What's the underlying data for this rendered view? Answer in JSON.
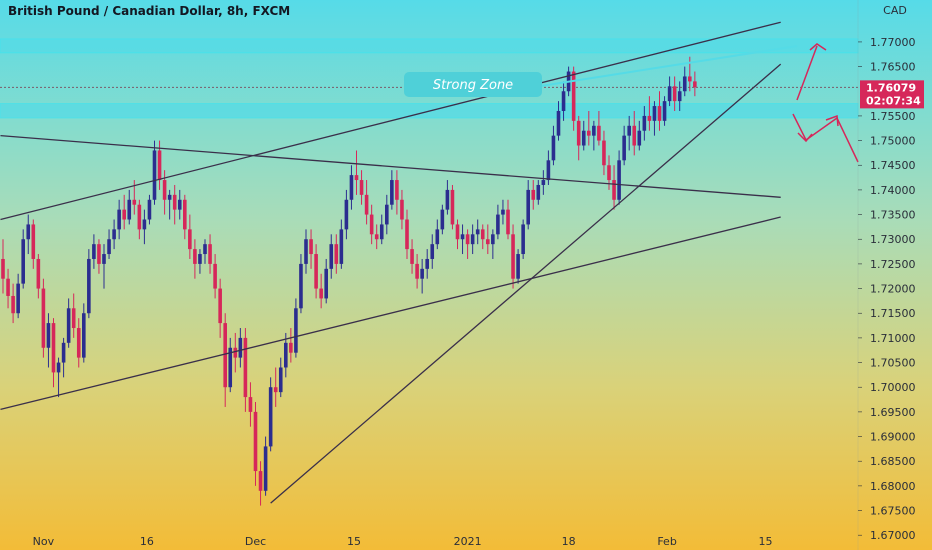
{
  "title": "British Pound / Canadian Dollar, 8h, FXCM",
  "colors": {
    "up": "#2b2d8f",
    "down": "#d6275a",
    "zone": "#55dbe6",
    "line": "#3a2f4a",
    "arrow": "#d6275a",
    "price_bg": "#d6275a"
  },
  "chart_data": {
    "type": "candlestick",
    "title": "British Pound / Canadian Dollar, 8h, FXCM",
    "currency": "CAD",
    "ylim": [
      1.667,
      1.7785
    ],
    "y_ticks": [
      "1.77000",
      "1.76500",
      "1.76079",
      "1.75500",
      "1.75000",
      "1.74500",
      "1.74000",
      "1.73500",
      "1.73000",
      "1.72500",
      "1.72000",
      "1.71500",
      "1.71000",
      "1.70500",
      "1.70000",
      "1.69500",
      "1.69000",
      "1.68500",
      "1.68000",
      "1.67500",
      "1.67000"
    ],
    "x_ticks": [
      "Nov",
      "16",
      "Dec",
      "15",
      "2021",
      "18",
      "Feb",
      "15"
    ],
    "last_price": "1.76079",
    "countdown": "02:07:34",
    "annotation": "Strong Zone",
    "zones": [
      [
        1.7678,
        1.7706
      ],
      [
        1.7546,
        1.7575
      ]
    ],
    "series": [
      {
        "ohlc": [
          [
            1.726,
            1.73,
            1.719,
            1.722
          ],
          [
            1.722,
            1.724,
            1.716,
            1.7185
          ],
          [
            1.7185,
            1.721,
            1.713,
            1.715
          ],
          [
            1.715,
            1.723,
            1.714,
            1.721
          ],
          [
            1.721,
            1.732,
            1.72,
            1.73
          ],
          [
            1.73,
            1.735,
            1.727,
            1.733
          ],
          [
            1.733,
            1.734,
            1.724,
            1.726
          ],
          [
            1.726,
            1.727,
            1.718,
            1.72
          ],
          [
            1.72,
            1.722,
            1.706,
            1.708
          ],
          [
            1.708,
            1.715,
            1.704,
            1.713
          ],
          [
            1.713,
            1.714,
            1.7,
            1.703
          ],
          [
            1.703,
            1.706,
            1.698,
            1.705
          ],
          [
            1.705,
            1.71,
            1.702,
            1.709
          ],
          [
            1.709,
            1.718,
            1.708,
            1.716
          ],
          [
            1.716,
            1.719,
            1.71,
            1.712
          ],
          [
            1.712,
            1.714,
            1.704,
            1.706
          ],
          [
            1.706,
            1.717,
            1.705,
            1.715
          ],
          [
            1.715,
            1.728,
            1.714,
            1.726
          ],
          [
            1.726,
            1.731,
            1.724,
            1.729
          ],
          [
            1.729,
            1.73,
            1.723,
            1.725
          ],
          [
            1.725,
            1.729,
            1.72,
            1.727
          ],
          [
            1.727,
            1.732,
            1.726,
            1.73
          ],
          [
            1.73,
            1.734,
            1.728,
            1.732
          ],
          [
            1.732,
            1.738,
            1.73,
            1.736
          ],
          [
            1.736,
            1.739,
            1.732,
            1.734
          ],
          [
            1.734,
            1.74,
            1.733,
            1.738
          ],
          [
            1.738,
            1.742,
            1.735,
            1.737
          ],
          [
            1.737,
            1.738,
            1.73,
            1.732
          ],
          [
            1.732,
            1.736,
            1.729,
            1.734
          ],
          [
            1.734,
            1.739,
            1.733,
            1.738
          ],
          [
            1.738,
            1.75,
            1.737,
            1.748
          ],
          [
            1.748,
            1.75,
            1.74,
            1.742
          ],
          [
            1.742,
            1.744,
            1.735,
            1.738
          ],
          [
            1.738,
            1.74,
            1.734,
            1.739
          ],
          [
            1.739,
            1.741,
            1.733,
            1.736
          ],
          [
            1.736,
            1.74,
            1.734,
            1.738
          ],
          [
            1.738,
            1.739,
            1.73,
            1.732
          ],
          [
            1.732,
            1.735,
            1.726,
            1.728
          ],
          [
            1.728,
            1.73,
            1.722,
            1.725
          ],
          [
            1.725,
            1.728,
            1.723,
            1.727
          ],
          [
            1.727,
            1.73,
            1.725,
            1.729
          ],
          [
            1.729,
            1.731,
            1.723,
            1.725
          ],
          [
            1.725,
            1.727,
            1.718,
            1.72
          ],
          [
            1.72,
            1.722,
            1.71,
            1.713
          ],
          [
            1.713,
            1.715,
            1.696,
            1.7
          ],
          [
            1.7,
            1.71,
            1.699,
            1.708
          ],
          [
            1.708,
            1.711,
            1.703,
            1.706
          ],
          [
            1.706,
            1.712,
            1.704,
            1.71
          ],
          [
            1.71,
            1.712,
            1.695,
            1.698
          ],
          [
            1.698,
            1.701,
            1.692,
            1.695
          ],
          [
            1.695,
            1.697,
            1.68,
            1.683
          ],
          [
            1.683,
            1.685,
            1.676,
            1.679
          ],
          [
            1.679,
            1.69,
            1.678,
            1.688
          ],
          [
            1.688,
            1.702,
            1.687,
            1.7
          ],
          [
            1.7,
            1.704,
            1.696,
            1.699
          ],
          [
            1.699,
            1.706,
            1.698,
            1.704
          ],
          [
            1.704,
            1.711,
            1.702,
            1.709
          ],
          [
            1.709,
            1.712,
            1.705,
            1.707
          ],
          [
            1.707,
            1.718,
            1.706,
            1.716
          ],
          [
            1.716,
            1.727,
            1.715,
            1.725
          ],
          [
            1.725,
            1.732,
            1.723,
            1.73
          ],
          [
            1.73,
            1.732,
            1.724,
            1.727
          ],
          [
            1.727,
            1.729,
            1.718,
            1.72
          ],
          [
            1.72,
            1.723,
            1.716,
            1.718
          ],
          [
            1.718,
            1.726,
            1.717,
            1.724
          ],
          [
            1.724,
            1.731,
            1.722,
            1.729
          ],
          [
            1.729,
            1.731,
            1.723,
            1.725
          ],
          [
            1.725,
            1.734,
            1.724,
            1.732
          ],
          [
            1.732,
            1.74,
            1.73,
            1.738
          ],
          [
            1.738,
            1.745,
            1.736,
            1.743
          ],
          [
            1.743,
            1.748,
            1.739,
            1.742
          ],
          [
            1.742,
            1.744,
            1.737,
            1.739
          ],
          [
            1.739,
            1.742,
            1.733,
            1.735
          ],
          [
            1.735,
            1.737,
            1.729,
            1.731
          ],
          [
            1.731,
            1.733,
            1.728,
            1.73
          ],
          [
            1.73,
            1.735,
            1.729,
            1.733
          ],
          [
            1.733,
            1.739,
            1.731,
            1.737
          ],
          [
            1.737,
            1.744,
            1.736,
            1.742
          ],
          [
            1.742,
            1.744,
            1.735,
            1.738
          ],
          [
            1.738,
            1.74,
            1.732,
            1.734
          ],
          [
            1.734,
            1.736,
            1.726,
            1.728
          ],
          [
            1.728,
            1.73,
            1.723,
            1.725
          ],
          [
            1.725,
            1.727,
            1.72,
            1.722
          ],
          [
            1.722,
            1.726,
            1.719,
            1.724
          ],
          [
            1.724,
            1.728,
            1.722,
            1.726
          ],
          [
            1.726,
            1.731,
            1.724,
            1.729
          ],
          [
            1.729,
            1.734,
            1.728,
            1.732
          ],
          [
            1.732,
            1.737,
            1.731,
            1.736
          ],
          [
            1.736,
            1.742,
            1.735,
            1.74
          ],
          [
            1.74,
            1.741,
            1.732,
            1.733
          ],
          [
            1.733,
            1.734,
            1.728,
            1.73
          ],
          [
            1.73,
            1.733,
            1.727,
            1.731
          ],
          [
            1.731,
            1.732,
            1.726,
            1.729
          ],
          [
            1.729,
            1.733,
            1.727,
            1.731
          ],
          [
            1.731,
            1.734,
            1.729,
            1.732
          ],
          [
            1.732,
            1.733,
            1.728,
            1.73
          ],
          [
            1.73,
            1.733,
            1.727,
            1.729
          ],
          [
            1.729,
            1.732,
            1.726,
            1.731
          ],
          [
            1.731,
            1.737,
            1.73,
            1.735
          ],
          [
            1.735,
            1.738,
            1.733,
            1.736
          ],
          [
            1.736,
            1.738,
            1.73,
            1.731
          ],
          [
            1.731,
            1.733,
            1.72,
            1.722
          ],
          [
            1.722,
            1.728,
            1.721,
            1.727
          ],
          [
            1.727,
            1.734,
            1.726,
            1.733
          ],
          [
            1.733,
            1.742,
            1.732,
            1.74
          ],
          [
            1.74,
            1.742,
            1.736,
            1.738
          ],
          [
            1.738,
            1.742,
            1.737,
            1.741
          ],
          [
            1.741,
            1.744,
            1.739,
            1.742
          ],
          [
            1.742,
            1.748,
            1.741,
            1.746
          ],
          [
            1.746,
            1.753,
            1.745,
            1.751
          ],
          [
            1.751,
            1.758,
            1.75,
            1.756
          ],
          [
            1.756,
            1.762,
            1.754,
            1.76
          ],
          [
            1.76,
            1.765,
            1.759,
            1.764
          ],
          [
            1.764,
            1.765,
            1.752,
            1.754
          ],
          [
            1.754,
            1.755,
            1.746,
            1.749
          ],
          [
            1.749,
            1.754,
            1.748,
            1.752
          ],
          [
            1.752,
            1.756,
            1.749,
            1.751
          ],
          [
            1.751,
            1.754,
            1.748,
            1.753
          ],
          [
            1.753,
            1.756,
            1.749,
            1.75
          ],
          [
            1.75,
            1.752,
            1.743,
            1.745
          ],
          [
            1.745,
            1.747,
            1.74,
            1.742
          ],
          [
            1.742,
            1.745,
            1.736,
            1.738
          ],
          [
            1.738,
            1.748,
            1.737,
            1.746
          ],
          [
            1.746,
            1.753,
            1.745,
            1.751
          ],
          [
            1.751,
            1.755,
            1.748,
            1.753
          ],
          [
            1.753,
            1.756,
            1.747,
            1.749
          ],
          [
            1.749,
            1.754,
            1.748,
            1.752
          ],
          [
            1.752,
            1.757,
            1.75,
            1.755
          ],
          [
            1.755,
            1.759,
            1.752,
            1.754
          ],
          [
            1.754,
            1.758,
            1.751,
            1.757
          ],
          [
            1.757,
            1.76,
            1.752,
            1.754
          ],
          [
            1.754,
            1.759,
            1.753,
            1.758
          ],
          [
            1.758,
            1.763,
            1.757,
            1.761
          ],
          [
            1.761,
            1.763,
            1.756,
            1.758
          ],
          [
            1.758,
            1.762,
            1.756,
            1.76
          ],
          [
            1.76,
            1.765,
            1.759,
            1.763
          ],
          [
            1.763,
            1.767,
            1.76,
            1.762
          ],
          [
            1.762,
            1.764,
            1.759,
            1.7608
          ]
        ]
      }
    ],
    "trendlines": [
      {
        "name": "upper-channel",
        "x0": -0.5,
        "y0": 1.734,
        "x1": 154.0,
        "y1": 1.774
      },
      {
        "name": "resistance-flat",
        "x0": -0.5,
        "y0": 1.751,
        "x1": 154.0,
        "y1": 1.7385
      },
      {
        "name": "lower-channel",
        "x0": -0.5,
        "y0": 1.6955,
        "x1": 154.0,
        "y1": 1.7345
      },
      {
        "name": "rising-support",
        "x0": 53.0,
        "y0": 1.6765,
        "x1": 154.0,
        "y1": 1.7655
      }
    ]
  }
}
